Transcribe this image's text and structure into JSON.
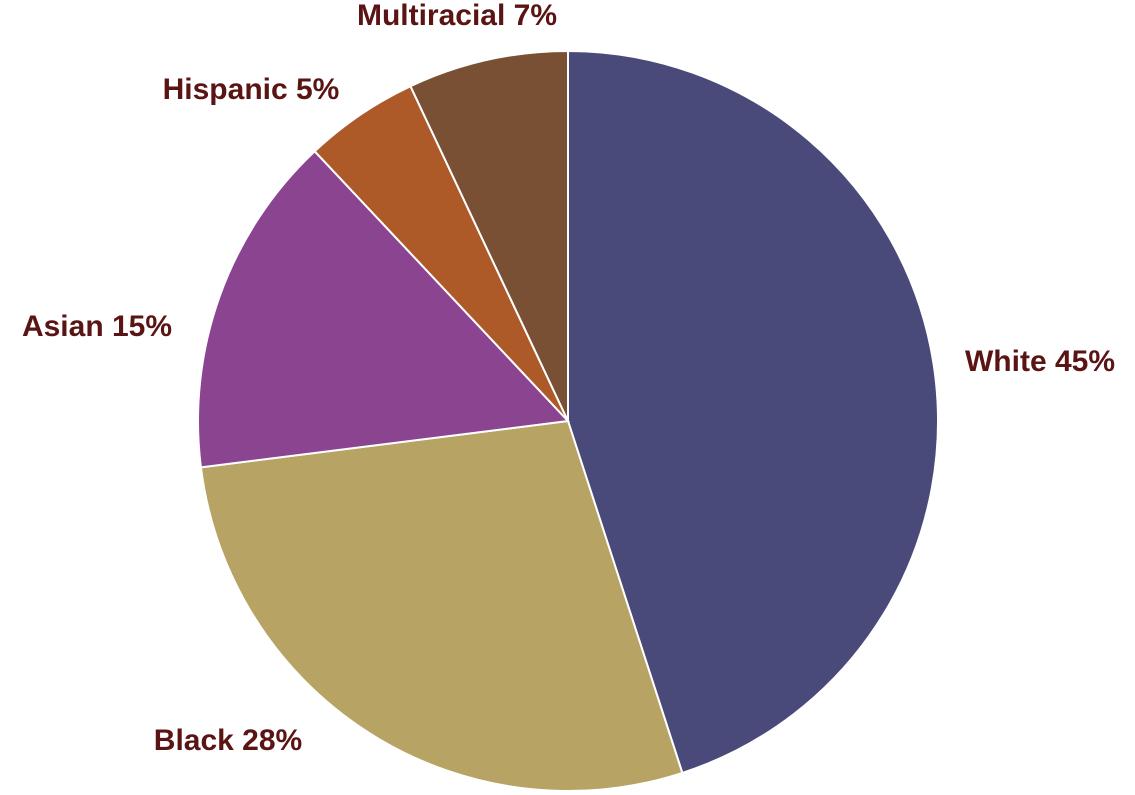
{
  "chart_data": {
    "type": "pie",
    "title": "",
    "categories": [
      "White",
      "Black",
      "Asian",
      "Hispanic",
      "Multiracial"
    ],
    "values": [
      45,
      28,
      15,
      5,
      7
    ],
    "unit": "%",
    "labels": [
      "White 45%",
      "Black 28%",
      "Asian 15%",
      "Hispanic 5%",
      "Multiracial 7%"
    ],
    "colors": [
      "#4a4a7a",
      "#b7a363",
      "#8b448f",
      "#ad5a28",
      "#7a5035"
    ],
    "label_color": "#5a1414",
    "start": "12 o'clock",
    "direction": "clockwise",
    "legend": "none"
  }
}
